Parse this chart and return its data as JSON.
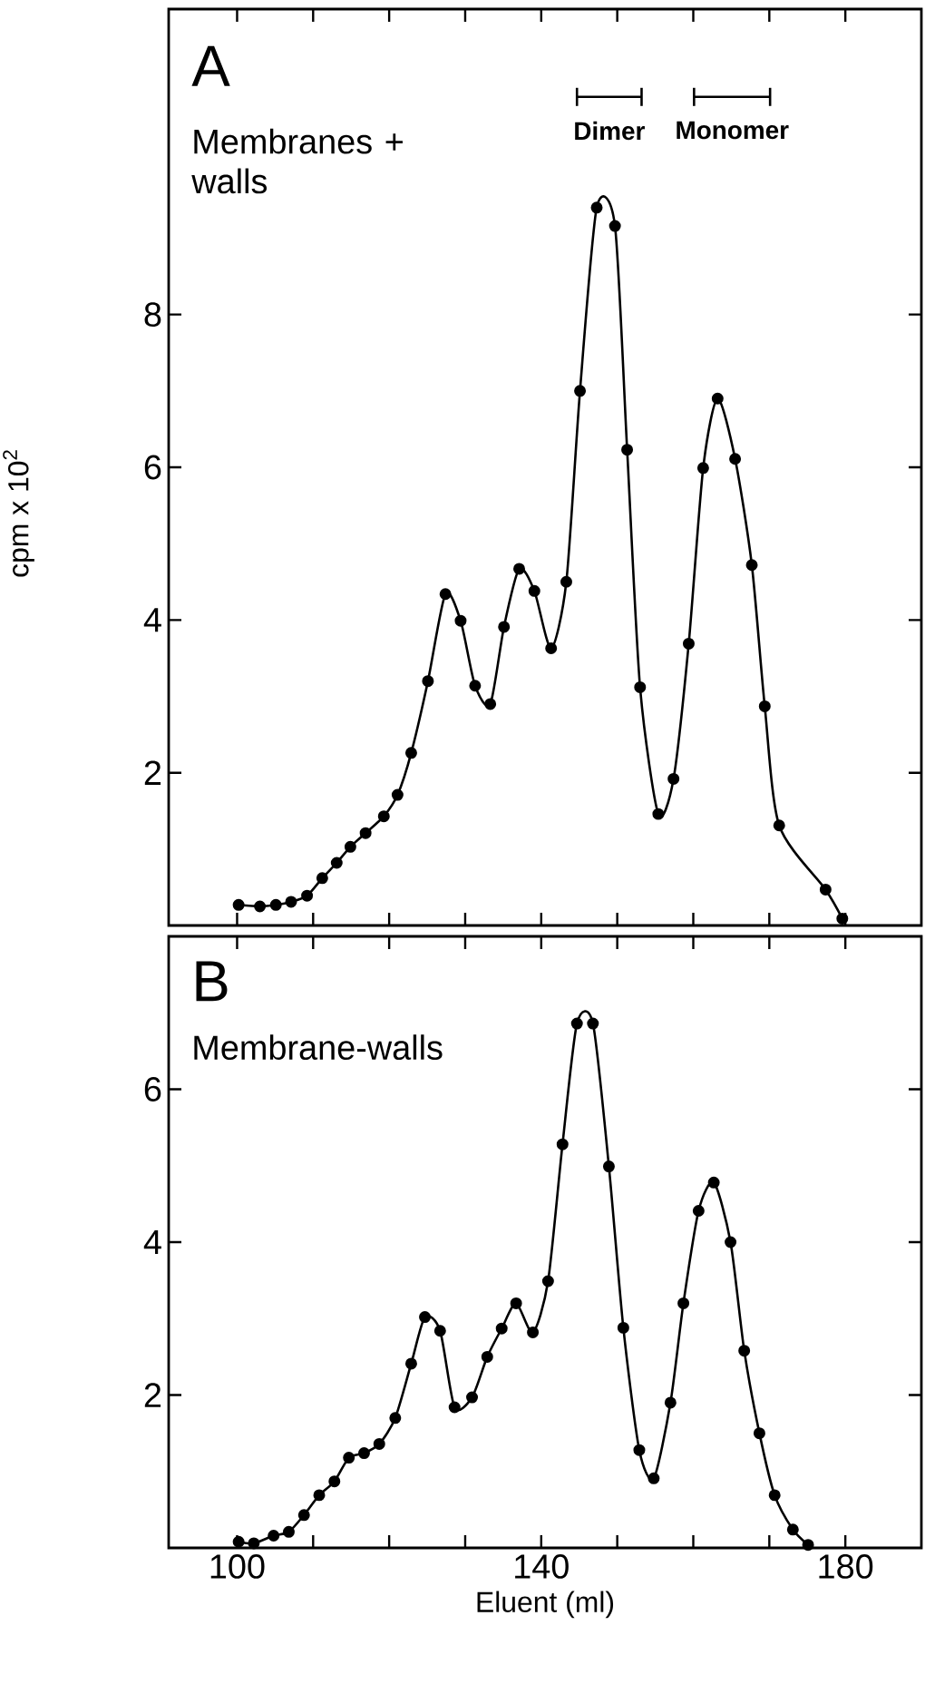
{
  "chart_data": [
    {
      "type": "line",
      "ylabel": "cpm x 10$^{2}$",
      "annotations": [
        "A",
        "Membranes + walls"
      ],
      "legend": "top right",
      "xlim": [
        91,
        190
      ],
      "ylim": [
        0,
        12
      ],
      "marker": "circle",
      "line_style": "solid",
      "tick_labels": "y",
      "xticks": [
        {
          "value": 100,
          "label": null
        },
        {
          "value": 110,
          "label": null
        },
        {
          "value": 120,
          "label": null
        },
        {
          "value": 130,
          "label": null
        },
        {
          "value": 140,
          "label": null
        },
        {
          "value": 150,
          "label": null
        },
        {
          "value": 160,
          "label": null
        },
        {
          "value": 170,
          "label": null
        },
        {
          "value": 180,
          "label": null
        }
      ],
      "yticks": [
        2,
        4,
        6,
        8
      ],
      "series": [
        {
          "color": "#000000",
          "x": [
            100.2,
            103.0,
            105.1,
            107.1,
            109.2,
            111.2,
            113.1,
            114.9,
            116.9,
            119.3,
            121.1,
            122.9,
            125.1,
            127.4,
            129.4,
            131.3,
            133.3,
            135.1,
            137.1,
            139.1,
            141.3,
            143.3,
            145.1,
            147.3,
            149.7,
            151.3,
            153.0,
            155.4,
            157.4,
            159.4,
            161.3,
            163.2,
            165.5,
            167.7,
            169.4,
            171.3,
            177.4,
            179.6
          ],
          "values": [
            0.27,
            0.25,
            0.27,
            0.31,
            0.39,
            0.62,
            0.82,
            1.03,
            1.21,
            1.43,
            1.71,
            2.26,
            3.2,
            4.34,
            3.99,
            3.14,
            2.9,
            3.91,
            4.67,
            4.38,
            3.63,
            4.5,
            7.0,
            9.4,
            9.16,
            6.23,
            3.12,
            1.46,
            1.92,
            3.69,
            5.99,
            6.9,
            6.11,
            4.72,
            2.87,
            1.31,
            0.47,
            0.09
          ]
        },
        {
          "name": "Dimer",
          "color": "#000000",
          "marker": "none",
          "x": [
            144.7,
            153.2
          ],
          "values": [
            10.85,
            10.85
          ]
        },
        {
          "name": "Monomer",
          "color": "#000000",
          "marker": "none",
          "x": [
            160.1,
            170.1
          ],
          "values": [
            10.85,
            10.85
          ]
        }
      ]
    },
    {
      "type": "line",
      "xlabel": "Eluent (ml)",
      "annotations": [
        "B",
        "Membrane-walls"
      ],
      "xlim": [
        91,
        190
      ],
      "ylim": [
        0,
        8
      ],
      "marker": "circle",
      "line_style": "solid",
      "xticks": [
        100,
        {
          "value": 110,
          "label": null
        },
        {
          "value": 120,
          "label": null
        },
        {
          "value": 130,
          "label": null
        },
        140,
        {
          "value": 150,
          "label": null
        },
        {
          "value": 160,
          "label": null
        },
        {
          "value": 170,
          "label": null
        },
        180
      ],
      "yticks": [
        2,
        4,
        6
      ],
      "series": [
        {
          "color": "#000000",
          "x": [
            100.2,
            102.2,
            104.8,
            106.8,
            108.8,
            110.8,
            112.8,
            114.7,
            116.7,
            118.7,
            120.8,
            122.9,
            124.7,
            126.7,
            128.6,
            130.9,
            132.9,
            134.8,
            136.7,
            138.9,
            140.9,
            142.8,
            144.7,
            146.8,
            148.9,
            150.8,
            152.9,
            154.8,
            157.0,
            158.7,
            160.7,
            162.7,
            164.9,
            166.7,
            168.7,
            170.7,
            173.1,
            175.1
          ],
          "values": [
            0.08,
            0.06,
            0.16,
            0.21,
            0.43,
            0.69,
            0.87,
            1.18,
            1.24,
            1.36,
            1.7,
            2.41,
            3.02,
            2.84,
            1.84,
            1.97,
            2.5,
            2.87,
            3.2,
            2.82,
            3.49,
            5.28,
            6.86,
            6.86,
            4.99,
            2.88,
            1.28,
            0.91,
            1.9,
            3.2,
            4.41,
            4.78,
            4.0,
            2.58,
            1.5,
            0.69,
            0.24,
            0.04
          ]
        }
      ]
    }
  ]
}
